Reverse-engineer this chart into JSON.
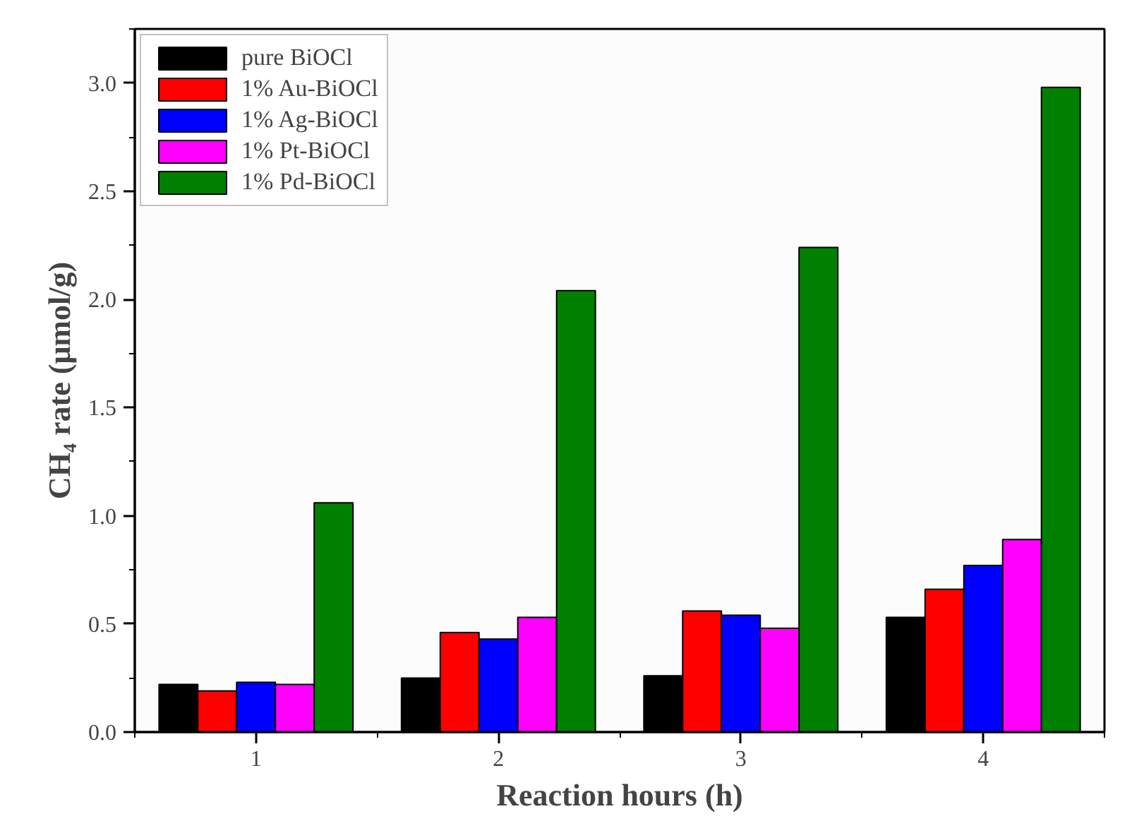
{
  "chart_data": {
    "type": "bar",
    "xlabel": "Reaction hours (h)",
    "ylabel": "CH₄ rate (μmol/g)",
    "x": [
      1,
      2,
      3,
      4
    ],
    "xlim": [
      0.5,
      4.5
    ],
    "xticks": [
      1,
      2,
      3,
      4
    ],
    "ylim": [
      0,
      3.25
    ],
    "yticks": [
      {
        "value": 0,
        "label": "0.0"
      },
      {
        "value": 0.5,
        "label": "0.5"
      },
      {
        "value": 1,
        "label": "1.0"
      },
      {
        "value": 1.5,
        "label": "1.5"
      },
      {
        "value": 2,
        "label": "2.0"
      },
      {
        "value": 2.5,
        "label": "2.5"
      },
      {
        "value": 3,
        "label": "3.0"
      }
    ],
    "grid": false,
    "legend": "top left",
    "series": [
      {
        "name": "pure BiOCl",
        "color": "#000000",
        "values": [
          0.22,
          0.25,
          0.26,
          0.53
        ]
      },
      {
        "name": "1% Au-BiOCl",
        "color": "#ff0000",
        "values": [
          0.19,
          0.46,
          0.56,
          0.66
        ]
      },
      {
        "name": "1% Ag-BiOCl",
        "color": "#0000ff",
        "values": [
          0.23,
          0.43,
          0.54,
          0.77
        ]
      },
      {
        "name": "1% Pt-BiOCl",
        "color": "#ff00ff",
        "values": [
          0.22,
          0.53,
          0.48,
          0.89
        ]
      },
      {
        "name": "1% Pd-BiOCl",
        "color": "#008000",
        "values": [
          1.06,
          2.04,
          2.24,
          2.98
        ]
      }
    ]
  }
}
